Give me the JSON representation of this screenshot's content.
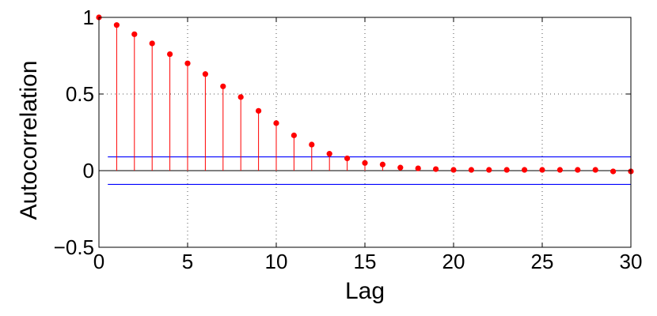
{
  "chart_data": {
    "type": "stem",
    "title": "",
    "xlabel": "Lag",
    "ylabel": "Autocorrelation",
    "xlim": [
      0,
      30
    ],
    "ylim": [
      -0.5,
      1
    ],
    "x_ticks": [
      "0",
      "5",
      "10",
      "15",
      "20",
      "25",
      "30"
    ],
    "x_tick_values": [
      0,
      5,
      10,
      15,
      20,
      25,
      30
    ],
    "y_ticks": [
      "−0.5",
      "0",
      "0.5",
      "1"
    ],
    "y_tick_values": [
      -0.5,
      0,
      0.5,
      1
    ],
    "grid": true,
    "series": [
      {
        "x": [
          0,
          1,
          2,
          3,
          4,
          5,
          6,
          7,
          8,
          9,
          10,
          11,
          12,
          13,
          14,
          15,
          16,
          17,
          18,
          19,
          20,
          21,
          22,
          23,
          24,
          25,
          26,
          27,
          28,
          29,
          30
        ],
        "values": [
          1.0,
          0.95,
          0.89,
          0.83,
          0.76,
          0.7,
          0.63,
          0.55,
          0.48,
          0.39,
          0.31,
          0.23,
          0.17,
          0.11,
          0.08,
          0.05,
          0.04,
          0.02,
          0.015,
          0.01,
          0.005,
          0.005,
          0.005,
          0.005,
          0.005,
          0.005,
          0.005,
          0.005,
          0.005,
          -0.005,
          -0.005
        ],
        "color": "#ff0000"
      }
    ],
    "confidence_bounds": {
      "upper": 0.09,
      "lower": -0.09,
      "xlim": [
        0.5,
        30
      ],
      "color": "#0000ff"
    }
  }
}
